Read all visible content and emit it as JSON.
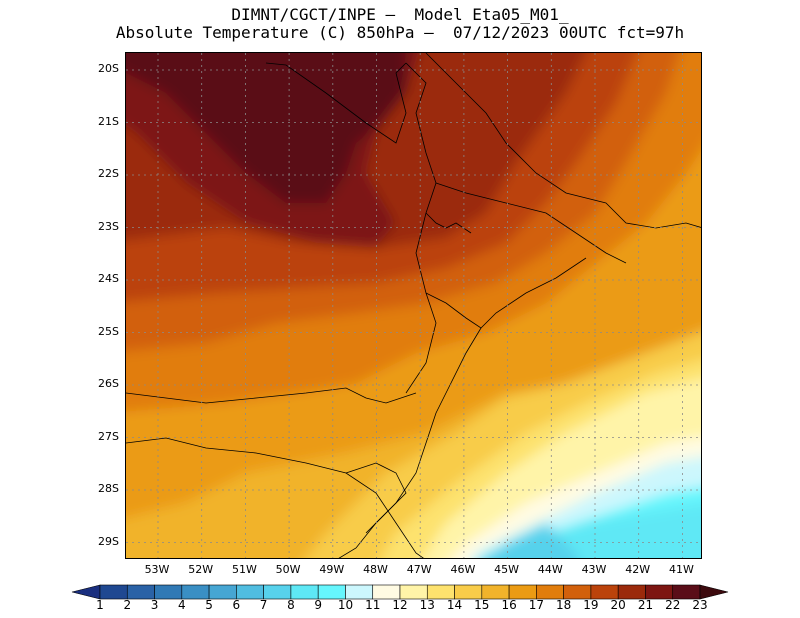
{
  "title": {
    "line1": "DIMNT/CGCT/INPE –  Model Eta05_M01_",
    "line2": "Absolute Temperature (C) 850hPa –  07/12/2023 00UTC fct=97h"
  },
  "map": {
    "lat_labels": [
      "20S",
      "21S",
      "22S",
      "23S",
      "24S",
      "25S",
      "26S",
      "27S",
      "28S",
      "29S"
    ],
    "lon_labels": [
      "53W",
      "52W",
      "51W",
      "50W",
      "49W",
      "48W",
      "47W",
      "46W",
      "45W",
      "44W",
      "43W",
      "42W",
      "41W"
    ],
    "lon_range": [
      -53.7,
      -40.6
    ],
    "lat_range": [
      -19.8,
      -29.4
    ]
  },
  "colorbar": {
    "labels": [
      "1",
      "2",
      "3",
      "4",
      "5",
      "6",
      "7",
      "8",
      "9",
      "10",
      "11",
      "12",
      "13",
      "14",
      "15",
      "16",
      "17",
      "18",
      "19",
      "20",
      "21",
      "22",
      "23"
    ],
    "colors": [
      "#1a2f7f",
      "#1f4891",
      "#2a62a6",
      "#3079b5",
      "#3a8fc4",
      "#46a6d3",
      "#50bde0",
      "#57d2ec",
      "#5ee8f5",
      "#66f6fd",
      "#ccf7fd",
      "#fffbe3",
      "#fff4a8",
      "#fde26e",
      "#f8cc49",
      "#f1b32b",
      "#eb9b13",
      "#e17d0c",
      "#d2600b",
      "#bb430b",
      "#9b2a0b",
      "#7d1612",
      "#5a0d18",
      "#3d0a0e"
    ]
  }
}
